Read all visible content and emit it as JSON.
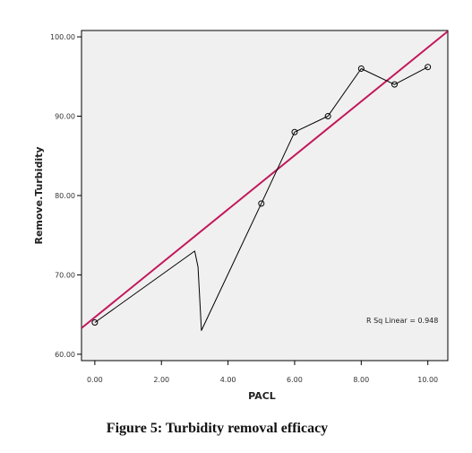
{
  "figure_caption": "Figure 5: Turbidity removal efficacy",
  "colors": {
    "plot_background": "#f0f0f0",
    "data_line": "#000000",
    "fit_line": "#c2185b"
  },
  "chart_data": {
    "type": "line",
    "title": "",
    "xlabel": "PACL",
    "ylabel": "Remove.Turbidity",
    "xlim": [
      -0.4,
      10.6
    ],
    "ylim": [
      59.2,
      100.8
    ],
    "xticks": [
      0,
      2,
      4,
      6,
      8,
      10
    ],
    "yticks": [
      60,
      70,
      80,
      90,
      100
    ],
    "xtick_labels": [
      "0.00",
      "2.00",
      "4.00",
      "6.00",
      "8.00",
      "10.00"
    ],
    "ytick_labels": [
      "60.00",
      "70.00",
      "80.00",
      "90.00",
      "100.00"
    ],
    "grid": false,
    "legend": "none",
    "series": [
      {
        "style": "line-with-circle-markers",
        "points": [
          {
            "x": 0,
            "y": 64,
            "marker": true
          },
          {
            "x": 3.0,
            "y": 73,
            "marker": false
          },
          {
            "x": 3.1,
            "y": 71,
            "marker": false
          },
          {
            "x": 3.2,
            "y": 63,
            "marker": false
          },
          {
            "x": 5,
            "y": 79,
            "marker": true
          },
          {
            "x": 6,
            "y": 88,
            "marker": true
          },
          {
            "x": 7,
            "y": 90,
            "marker": true
          },
          {
            "x": 8,
            "y": 96,
            "marker": true
          },
          {
            "x": 9,
            "y": 94,
            "marker": true
          },
          {
            "x": 10,
            "y": 96.2,
            "marker": true
          }
        ]
      }
    ],
    "fit_line": {
      "type": "linear",
      "intercept": 64.66,
      "slope": 3.4,
      "label": "R Sq Linear = 0.948"
    }
  }
}
